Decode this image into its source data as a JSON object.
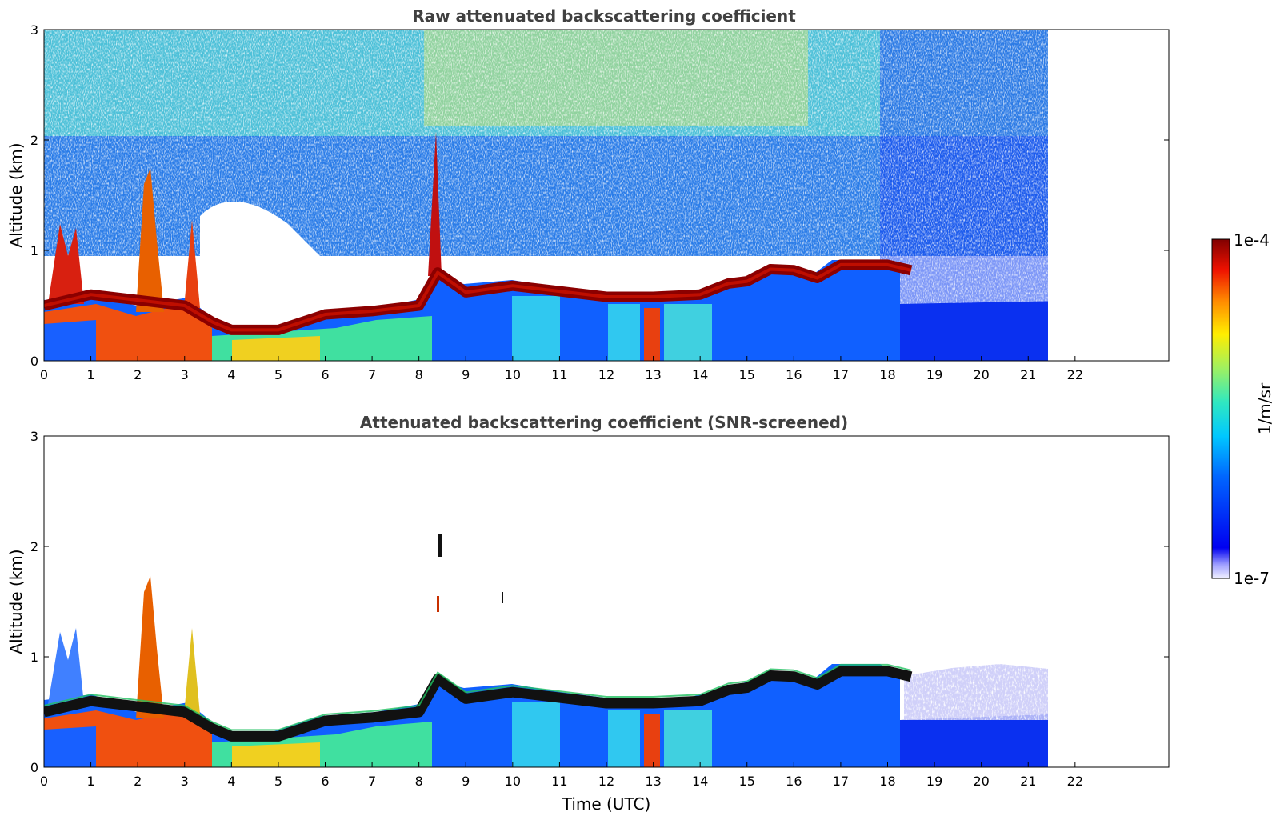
{
  "chart_data": [
    {
      "type": "heatmap",
      "title": "Raw attenuated backscattering coefficient",
      "xlabel": "",
      "ylabel": "Altitude (km)",
      "xlim": [
        0,
        24
      ],
      "ylim": [
        0,
        3
      ],
      "x_ticks": [
        0,
        1,
        2,
        3,
        4,
        5,
        6,
        7,
        8,
        9,
        10,
        11,
        12,
        13,
        14,
        15,
        16,
        17,
        18,
        19,
        20,
        21,
        22
      ],
      "y_ticks": [
        0,
        1,
        2,
        3
      ],
      "data_end_time": 21.8,
      "color_scale": "log",
      "boundary_layer_top_km": [
        {
          "t": 0,
          "z": 0.5
        },
        {
          "t": 1,
          "z": 0.6
        },
        {
          "t": 2,
          "z": 0.55
        },
        {
          "t": 3,
          "z": 0.5
        },
        {
          "t": 3.6,
          "z": 0.35
        },
        {
          "t": 4,
          "z": 0.28
        },
        {
          "t": 5,
          "z": 0.28
        },
        {
          "t": 6,
          "z": 0.42
        },
        {
          "t": 7,
          "z": 0.45
        },
        {
          "t": 8,
          "z": 0.5
        },
        {
          "t": 8.4,
          "z": 0.8
        },
        {
          "t": 9,
          "z": 0.62
        },
        {
          "t": 10,
          "z": 0.68
        },
        {
          "t": 11,
          "z": 0.63
        },
        {
          "t": 12,
          "z": 0.58
        },
        {
          "t": 13,
          "z": 0.58
        },
        {
          "t": 14,
          "z": 0.6
        },
        {
          "t": 14.6,
          "z": 0.7
        },
        {
          "t": 15,
          "z": 0.72
        },
        {
          "t": 15.5,
          "z": 0.83
        },
        {
          "t": 16,
          "z": 0.82
        },
        {
          "t": 16.5,
          "z": 0.75
        },
        {
          "t": 17,
          "z": 0.87
        },
        {
          "t": 18,
          "z": 0.87
        },
        {
          "t": 18.5,
          "z": 0.82
        }
      ]
    },
    {
      "type": "heatmap",
      "title": "Attenuated backscattering coefficient (SNR-screened)",
      "xlabel": "Time (UTC)",
      "ylabel": "Altitude (km)",
      "xlim": [
        0,
        24
      ],
      "ylim": [
        0,
        3
      ],
      "x_ticks": [
        0,
        1,
        2,
        3,
        4,
        5,
        6,
        7,
        8,
        9,
        10,
        11,
        12,
        13,
        14,
        15,
        16,
        17,
        18,
        19,
        20,
        21,
        22
      ],
      "y_ticks": [
        0,
        1,
        2,
        3
      ],
      "data_end_time": 21.8,
      "color_scale": "log"
    }
  ],
  "colorbar": {
    "label": "1/m/sr",
    "max_label": "1e-4",
    "min_label": "1e-7",
    "colormap": "jet"
  }
}
